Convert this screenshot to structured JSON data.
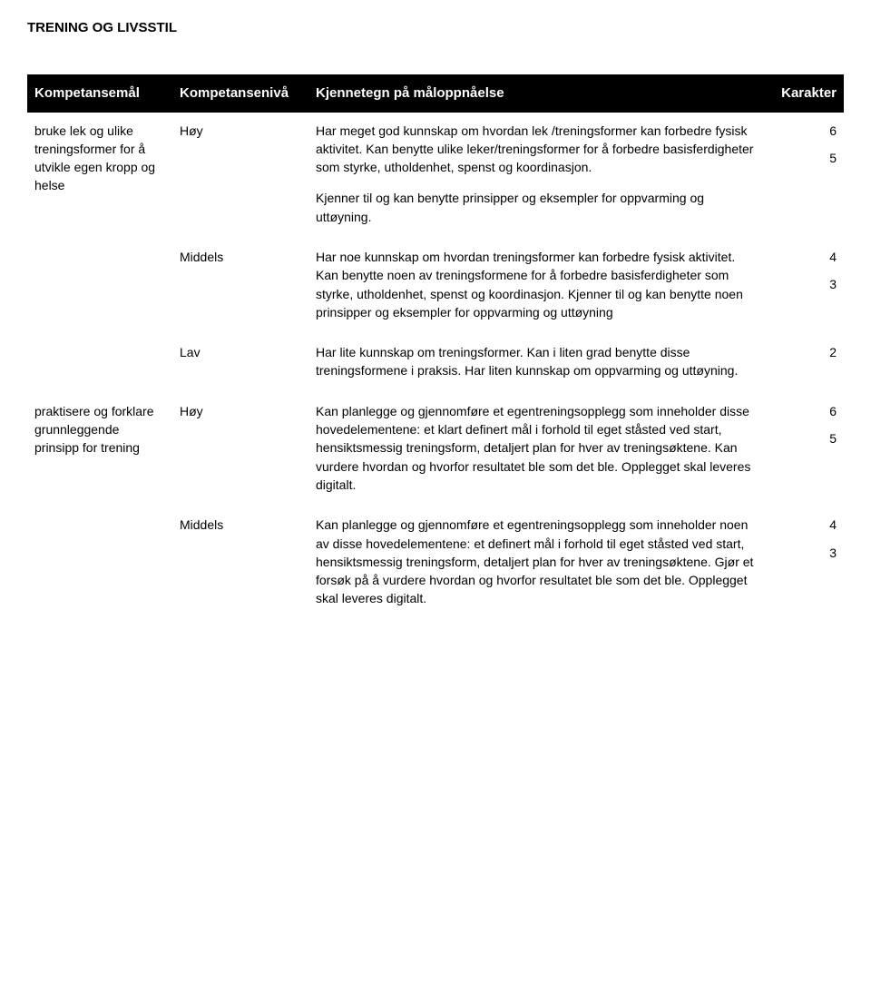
{
  "page_title": "TRENING OG LIVSSTIL",
  "header": {
    "goal": "Kompetansemål",
    "level": "Kompetansenivå",
    "desc": "Kjennetegn på måloppnåelse",
    "grade": "Karakter"
  },
  "rows": [
    {
      "goal": "bruke lek og ulike treningsformer for å utvikle egen kropp og helse",
      "level": "Høy",
      "desc_p1": "Har meget god kunnskap om hvordan  lek /treningsformer kan forbedre fysisk aktivitet. Kan benytte ulike leker/treningsformer for å forbedre basisferdigheter som styrke, utholdenhet, spenst og koordinasjon.",
      "desc_p2": "Kjenner til og kan benytte prinsipper og eksempler for oppvarming og uttøyning.",
      "g1": "6",
      "g2": "5"
    },
    {
      "goal": "",
      "level": "Middels",
      "desc_p1": "Har noe kunnskap om hvordan treningsformer kan forbedre fysisk aktivitet. Kan benytte noen av treningsformene for å forbedre basisferdigheter som styrke, utholdenhet, spenst og koordinasjon. Kjenner til og kan benytte noen prinsipper og eksempler for oppvarming og uttøyning",
      "desc_p2": "",
      "g1": "4",
      "g2": "3"
    },
    {
      "goal": "",
      "level": "Lav",
      "desc_p1": "Har lite kunnskap om treningsformer. Kan i liten grad benytte disse treningsformene i praksis. Har liten kunnskap om oppvarming og uttøyning.",
      "desc_p2": "",
      "g1": "2",
      "g2": ""
    },
    {
      "goal": "praktisere og forklare grunnleggende prinsipp for trening",
      "level": "Høy",
      "desc_p1": "Kan planlegge og gjennomføre et egentreningsopplegg som inneholder disse hovedelementene: et klart definert mål i forhold til eget ståsted ved start, hensiktsmessig treningsform, detaljert plan for hver av treningsøktene. Kan vurdere hvordan og hvorfor resultatet ble som det ble. Opplegget skal leveres digitalt.",
      "desc_p2": "",
      "g1": "6",
      "g2": "5"
    },
    {
      "goal": "",
      "level": "Middels",
      "desc_p1": "Kan planlegge og gjennomføre et egentreningsopplegg som inneholder noen av disse hovedelementene: et definert mål i forhold til eget ståsted ved start, hensiktsmessig treningsform, detaljert plan for hver av treningsøktene. Gjør et forsøk på å vurdere hvordan og hvorfor resultatet ble som det ble. Opplegget skal leveres digitalt.",
      "desc_p2": "",
      "g1": "4",
      "g2": "3"
    }
  ]
}
